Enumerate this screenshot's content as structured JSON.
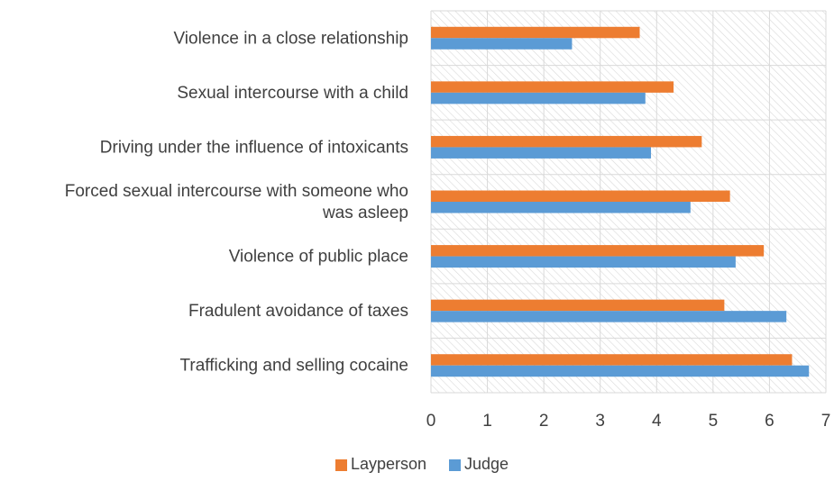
{
  "chart_data": {
    "type": "bar",
    "orientation": "horizontal",
    "categories": [
      "Violence in a close relationship",
      "Sexual intercourse with a child",
      "Driving under the influence of intoxicants",
      "Forced sexual intercourse with someone who was asleep",
      "Violence of public place",
      "Fradulent avoidance of taxes",
      "Trafficking and selling cocaine"
    ],
    "category_lines": [
      [
        "Violence in a close relationship"
      ],
      [
        "Sexual intercourse with a child"
      ],
      [
        "Driving under the influence of intoxicants"
      ],
      [
        "Forced sexual intercourse with someone who",
        "was asleep"
      ],
      [
        "Violence of public place"
      ],
      [
        "Fradulent avoidance of taxes"
      ],
      [
        "Trafficking and selling cocaine"
      ]
    ],
    "series": [
      {
        "name": "Layperson",
        "color": "#ED7D31",
        "values": [
          3.7,
          4.3,
          4.8,
          5.3,
          5.9,
          5.2,
          6.4
        ]
      },
      {
        "name": "Judge",
        "color": "#5B9BD5",
        "values": [
          2.5,
          3.8,
          3.9,
          4.6,
          5.4,
          6.3,
          6.7
        ]
      }
    ],
    "xlim": [
      0,
      7
    ],
    "xticks": [
      "0",
      "1",
      "2",
      "3",
      "4",
      "5",
      "6",
      "7"
    ],
    "grid": true,
    "plot_area_pattern": "diagonal-hatch",
    "legend_position": "bottom"
  }
}
